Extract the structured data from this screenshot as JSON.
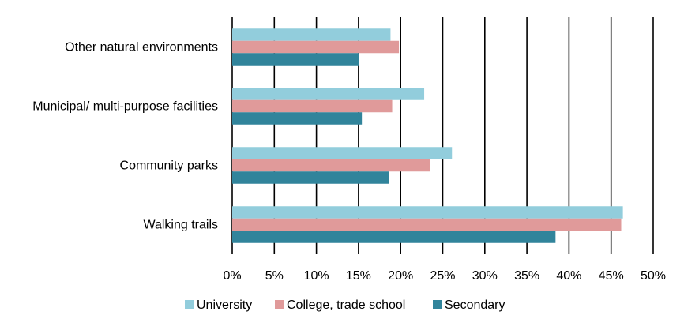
{
  "chart_data": {
    "type": "bar",
    "orientation": "horizontal",
    "categories": [
      "Other natural environments",
      "Municipal/ multi-purpose facilities",
      "Community parks",
      "Walking trails"
    ],
    "series": [
      {
        "name": "University",
        "color": "#92cddc",
        "values": [
          18.8,
          22.8,
          26.1,
          46.4
        ]
      },
      {
        "name": "College, trade school",
        "color": "#e09a9a",
        "values": [
          19.8,
          19.0,
          23.5,
          46.2
        ]
      },
      {
        "name": "Secondary",
        "color": "#31849b",
        "values": [
          15.1,
          15.4,
          18.6,
          38.4
        ]
      }
    ],
    "xlim": [
      0,
      50
    ],
    "xticks": [
      0,
      5,
      10,
      15,
      20,
      25,
      30,
      35,
      40,
      45,
      50
    ],
    "xtick_labels": [
      "0%",
      "5%",
      "10%",
      "15%",
      "20%",
      "25%",
      "30%",
      "35%",
      "40%",
      "45%",
      "50%"
    ],
    "grid": "vertical",
    "legend": "bottom"
  }
}
